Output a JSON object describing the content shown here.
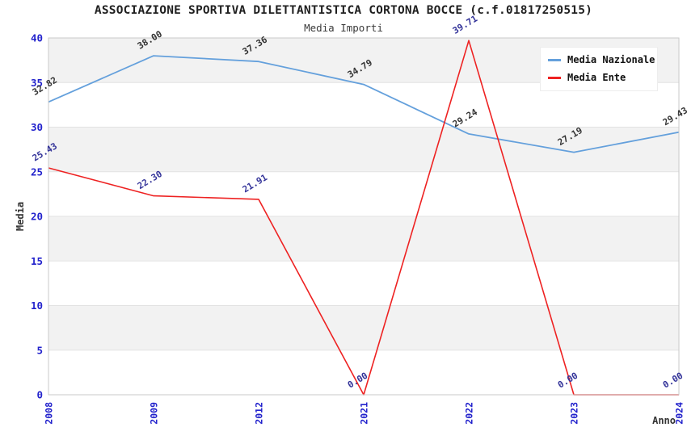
{
  "header": {
    "title": "ASSOCIAZIONE SPORTIVA DILETTANTISTICA CORTONA BOCCE (c.f.01817250515)",
    "subtitle": "Media Importi"
  },
  "chart_data": {
    "type": "line",
    "title": "ASSOCIAZIONE SPORTIVA DILETTANTISTICA CORTONA BOCCE (c.f.01817250515)",
    "subtitle": "Media Importi",
    "categories": [
      "2008",
      "2009",
      "2012",
      "2021",
      "2022",
      "2023",
      "2024"
    ],
    "series": [
      {
        "name": "Media Nazionale",
        "values": [
          32.82,
          38.0,
          37.36,
          34.79,
          29.24,
          27.19,
          29.43
        ],
        "color": "#64a0dc",
        "label_color": "#333333",
        "stroke_width": 1.8
      },
      {
        "name": "Media Ente",
        "values": [
          25.43,
          22.3,
          21.91,
          0.0,
          39.71,
          0.0,
          0.0
        ],
        "color": "#ee2222",
        "label_color": "#333399",
        "stroke_width": 1.6
      }
    ],
    "xlabel": "Anno",
    "ylabel": "Media",
    "ylim": [
      0,
      40
    ],
    "ytick_step": 5,
    "yticks": [
      0,
      5,
      10,
      15,
      20,
      25,
      30,
      35,
      40
    ],
    "grid": "horizontal-bands",
    "legend_position": "top-right",
    "value_label_decimals": 2,
    "style": {
      "band_gray": "#f2f2f2",
      "band_white": "#ffffff",
      "gridline": "#e2e2e2",
      "frame": "#c9c9c9",
      "tick_label_color": "#2222cc",
      "axis_title_color": "#333333",
      "title_color": "#1f1f1f",
      "subtitle_color": "#3a3a3a",
      "background": "#ffffff"
    }
  }
}
